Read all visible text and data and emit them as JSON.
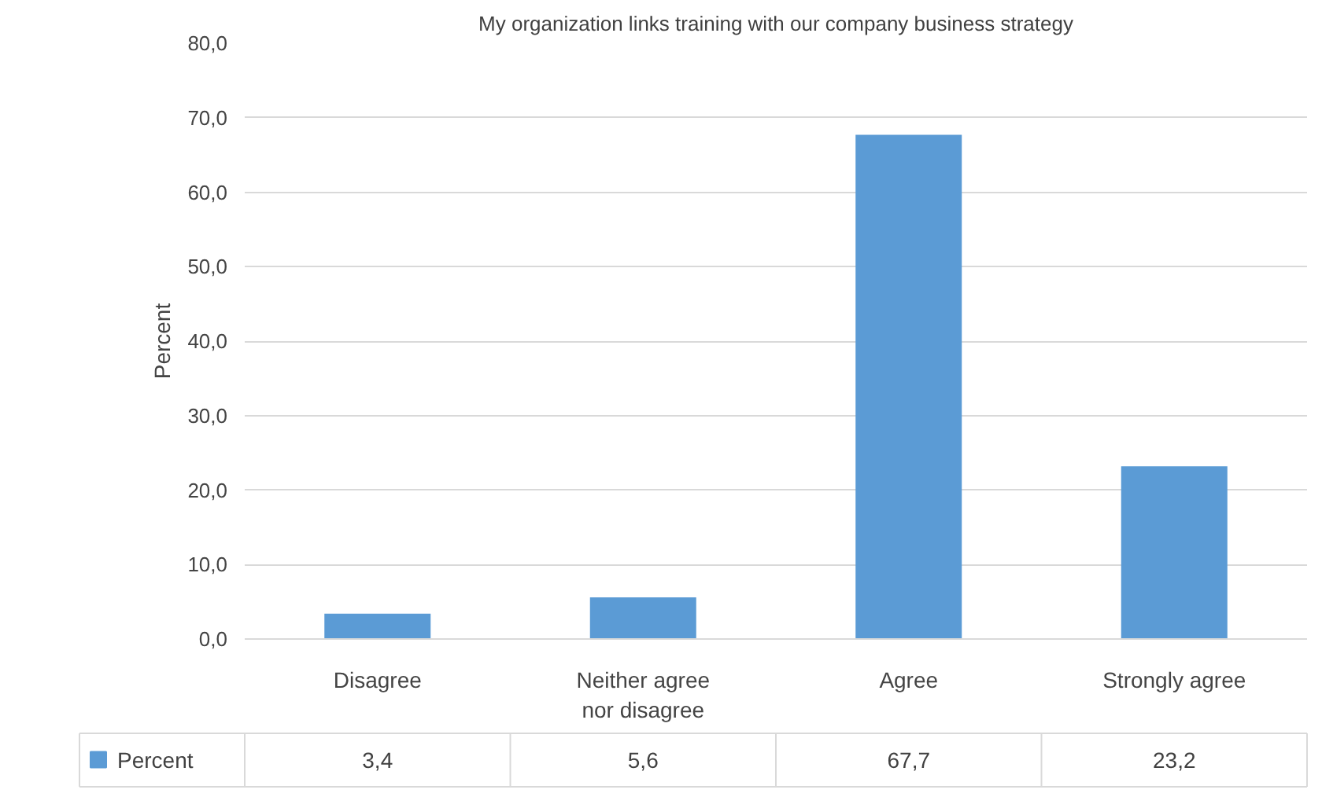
{
  "chart_data": {
    "type": "bar",
    "title": "My organization links training with our company business strategy",
    "ylabel": "Percent",
    "categories": [
      "Disagree",
      "Neither agree\nnor disagree",
      "Agree",
      "Strongly agree"
    ],
    "series": [
      {
        "name": "Percent",
        "color": "#5b9bd5",
        "values": [
          3.4,
          5.6,
          67.7,
          23.2
        ],
        "value_labels": [
          "3,4",
          "5,6",
          "67,7",
          "23,2"
        ]
      }
    ],
    "ylim": [
      0,
      80
    ],
    "yticks": [
      {
        "value": 0,
        "label": "0,0"
      },
      {
        "value": 10,
        "label": "10,0"
      },
      {
        "value": 20,
        "label": "20,0"
      },
      {
        "value": 30,
        "label": "30,0"
      },
      {
        "value": 40,
        "label": "40,0"
      },
      {
        "value": 50,
        "label": "50,0"
      },
      {
        "value": 60,
        "label": "60,0"
      },
      {
        "value": 70,
        "label": "70,0"
      },
      {
        "value": 80,
        "label": "80,0"
      }
    ],
    "grid": "y",
    "legend": "bottom"
  }
}
